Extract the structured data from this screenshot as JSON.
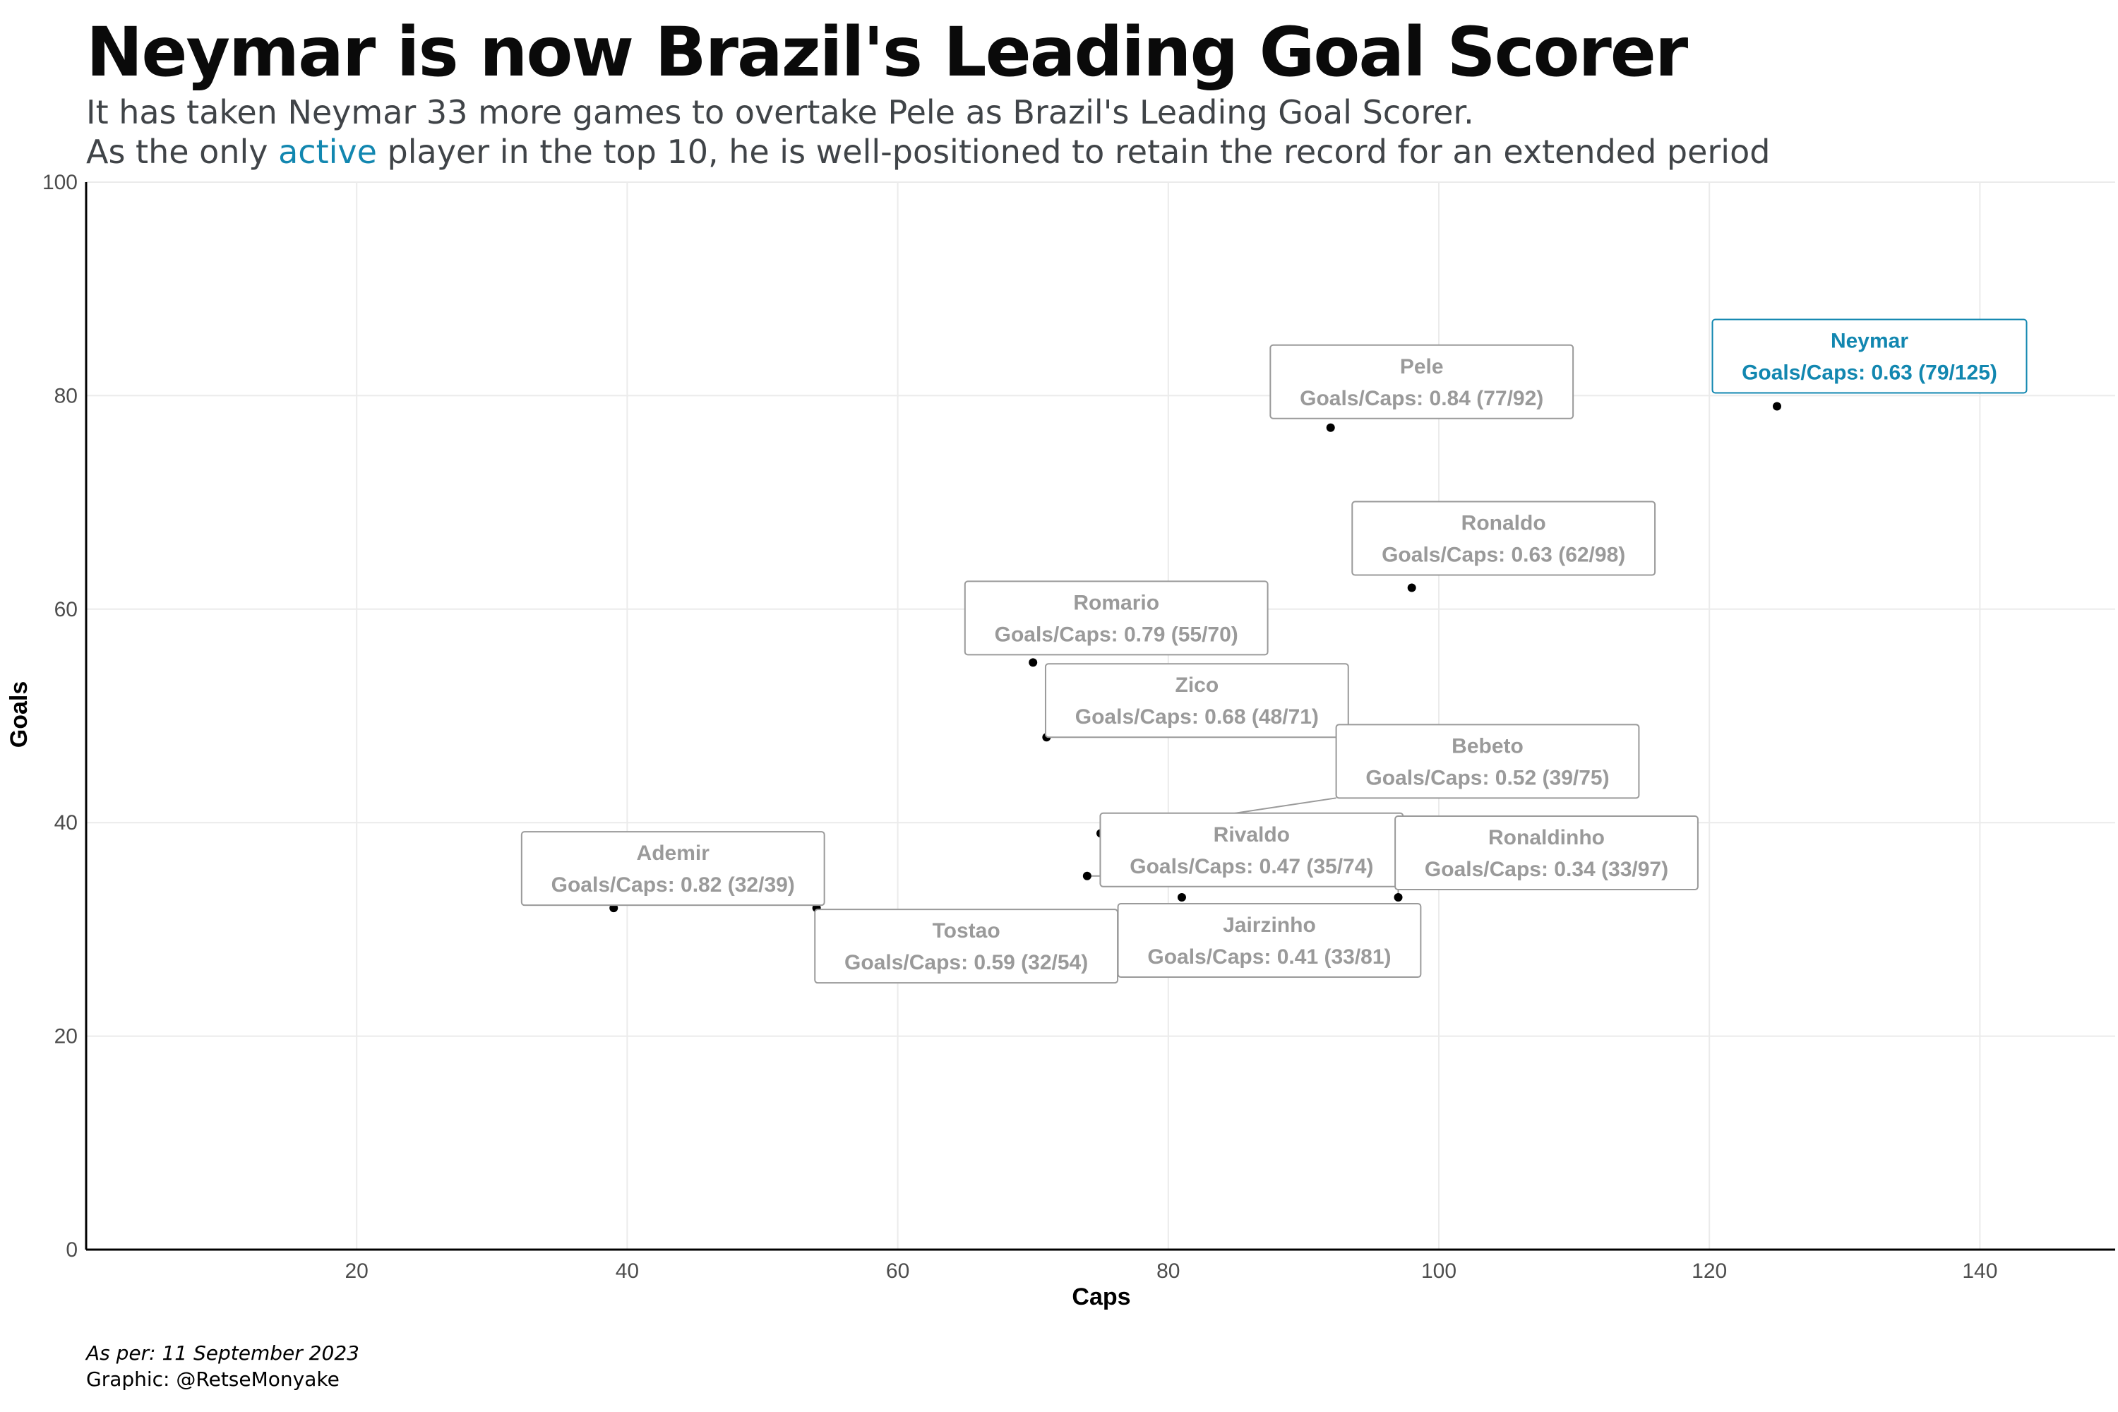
{
  "title": "Neymar is now Brazil's Leading Goal Scorer",
  "subtitle_line1": "It has taken Neymar 33 more games to overtake Pele as Brazil's Leading Goal Scorer.",
  "subtitle_line2": {
    "before": "As the only ",
    "highlight": "active",
    "after": " player in the top 10, he is well-positioned to retain the record for an extended period"
  },
  "caption_date": "As per: 11 September 2023",
  "caption_credit": "Graphic: @RetseMonyake",
  "colors": {
    "active": "#1287b0",
    "inactive": "#9a9a9a",
    "point": "#000000",
    "grid": "#ebebeb"
  },
  "chart_data": {
    "type": "scatter",
    "xlabel": "Caps",
    "ylabel": "Goals",
    "xlim": [
      0,
      150
    ],
    "ylim": [
      0,
      100
    ],
    "x_ticks": [
      20,
      40,
      60,
      80,
      100,
      120,
      140
    ],
    "y_ticks": [
      0,
      20,
      40,
      60,
      80,
      100
    ],
    "grid": true,
    "label_prefix": "Goals/Caps: ",
    "points": [
      {
        "name": "Neymar",
        "caps": 125,
        "goals": 79,
        "ratio": "0.63",
        "active": true
      },
      {
        "name": "Pele",
        "caps": 92,
        "goals": 77,
        "ratio": "0.84",
        "active": false
      },
      {
        "name": "Ronaldo",
        "caps": 98,
        "goals": 62,
        "ratio": "0.63",
        "active": false
      },
      {
        "name": "Romario",
        "caps": 70,
        "goals": 55,
        "ratio": "0.79",
        "active": false
      },
      {
        "name": "Zico",
        "caps": 71,
        "goals": 48,
        "ratio": "0.68",
        "active": false
      },
      {
        "name": "Bebeto",
        "caps": 75,
        "goals": 39,
        "ratio": "0.52",
        "active": false
      },
      {
        "name": "Rivaldo",
        "caps": 74,
        "goals": 35,
        "ratio": "0.47",
        "active": false
      },
      {
        "name": "Ronaldinho",
        "caps": 97,
        "goals": 33,
        "ratio": "0.34",
        "active": false
      },
      {
        "name": "Ademir",
        "caps": 39,
        "goals": 32,
        "ratio": "0.82",
        "active": false
      },
      {
        "name": "Tostao",
        "caps": 54,
        "goals": 32,
        "ratio": "0.59",
        "active": false
      },
      {
        "name": "Jairzinho",
        "caps": 81,
        "goals": 33,
        "ratio": "0.41",
        "active": false
      }
    ]
  }
}
